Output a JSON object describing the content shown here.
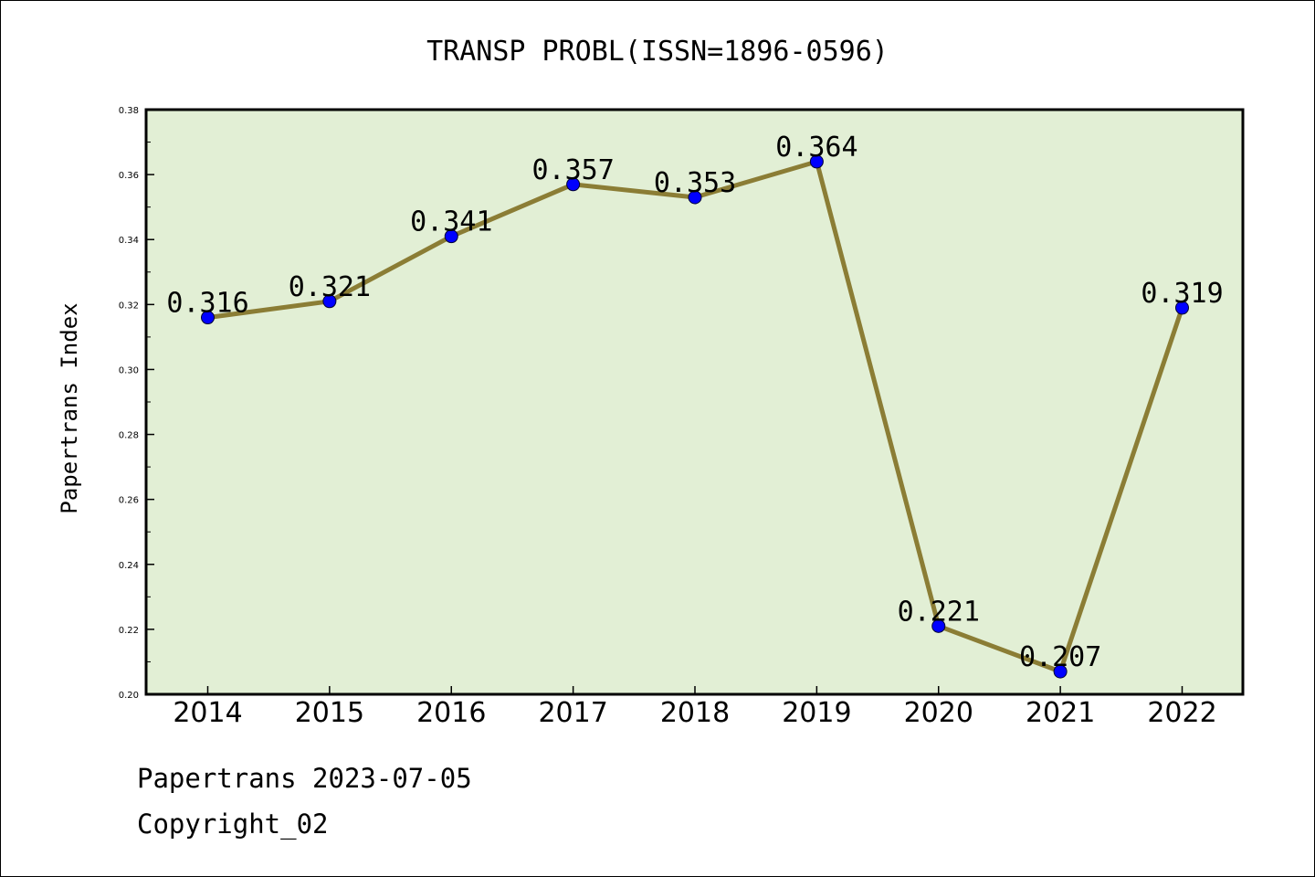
{
  "chart_data": {
    "type": "line",
    "title": "TRANSP PROBL(ISSN=1896-0596)",
    "xlabel": "",
    "ylabel": "Papertrans Index",
    "x": [
      "2014",
      "2015",
      "2016",
      "2017",
      "2018",
      "2019",
      "2020",
      "2021",
      "2022"
    ],
    "values": [
      0.316,
      0.321,
      0.341,
      0.357,
      0.353,
      0.364,
      0.221,
      0.207,
      0.319
    ],
    "data_labels": [
      "0.316",
      "0.321",
      "0.341",
      "0.357",
      "0.353",
      "0.364",
      "0.221",
      "0.207",
      "0.319"
    ],
    "ylim": [
      0.2,
      0.38
    ],
    "yticks": [
      "0.20",
      "0.22",
      "0.24",
      "0.26",
      "0.28",
      "0.30",
      "0.32",
      "0.34",
      "0.36",
      "0.38"
    ],
    "grid": false,
    "colors": {
      "plot_background": "#e2efd5",
      "line": "#8b7d35",
      "marker": "#0000ff"
    }
  },
  "footer": {
    "line1": "Papertrans 2023-07-05",
    "line2": "Copyright_02"
  }
}
